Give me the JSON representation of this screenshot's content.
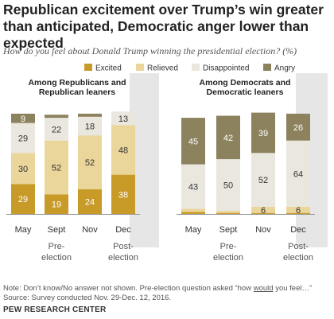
{
  "title": "Republican excitement over Trump’s win greater than anticipated, Democratic anger lower than expected",
  "subtitle": "How do you feel about Donald Trump winning the presidential election? (%)",
  "note": {
    "prefix": "Note: Don’t know/No answer not shown. Pre-election question asked “how ",
    "underlined": "would",
    "suffix": " you feel…”",
    "line2": "Source: Survey conducted Nov. 29-Dec. 12, 2016."
  },
  "source": "PEW RESEARCH CENTER",
  "colors": {
    "Excited": "#c89a28",
    "Relieved": "#ead59a",
    "Disappointed": "#e9e7de",
    "Angry": "#8c825e",
    "post_bg": "#e6e6e6"
  },
  "chart_data": {
    "type": "bar",
    "stacked": true,
    "legend": [
      "Excited",
      "Relieved",
      "Disappointed",
      "Angry"
    ],
    "categories": [
      "May",
      "Sept",
      "Nov",
      "Dec"
    ],
    "group_labels": {
      "pre": "Pre-\nelection",
      "post": "Post-\nelection"
    },
    "panels": [
      {
        "title": "Among Republicans and\nRepublican leaners",
        "series": [
          {
            "name": "Excited",
            "values": [
              29,
              19,
              24,
              38
            ],
            "labels": [
              "29",
              "19",
              "24",
              "38"
            ]
          },
          {
            "name": "Relieved",
            "values": [
              30,
              52,
              52,
              48
            ],
            "labels": [
              "30",
              "52",
              "52",
              "48"
            ]
          },
          {
            "name": "Disappointed",
            "values": [
              29,
              22,
              18,
              13
            ],
            "labels": [
              "29",
              "22",
              "18",
              "13"
            ]
          },
          {
            "name": "Angry",
            "values": [
              9,
              3,
              3,
              0
            ],
            "labels": [
              "9",
              "",
              "",
              ""
            ]
          }
        ]
      },
      {
        "title": "Among Democrats and\nDemocratic leaners",
        "series": [
          {
            "name": "Excited",
            "values": [
              2,
              1,
              1,
              1
            ],
            "labels": [
              "",
              "",
              "",
              ""
            ]
          },
          {
            "name": "Relieved",
            "values": [
              3,
              2,
              6,
              6
            ],
            "labels": [
              "",
              "",
              "6",
              "6"
            ]
          },
          {
            "name": "Disappointed",
            "values": [
              43,
              50,
              52,
              64
            ],
            "labels": [
              "43",
              "50",
              "52",
              "64"
            ]
          },
          {
            "name": "Angry",
            "values": [
              45,
              42,
              39,
              26
            ],
            "labels": [
              "45",
              "42",
              "39",
              "26"
            ]
          }
        ]
      }
    ]
  }
}
